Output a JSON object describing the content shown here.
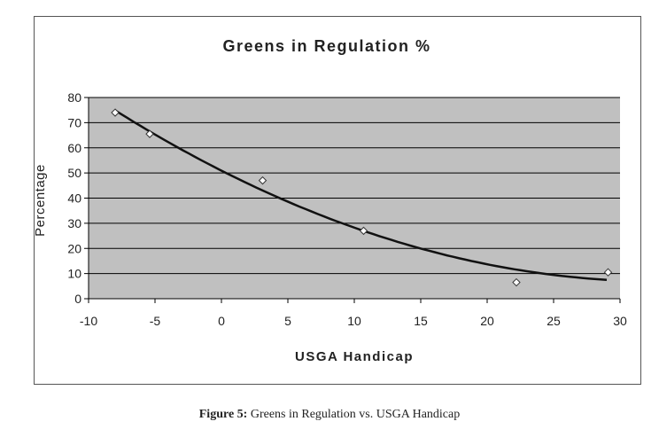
{
  "chart_data": {
    "type": "scatter",
    "title": "Greens in Regulation %",
    "xlabel": "USGA Handicap",
    "ylabel": "Percentage",
    "xlim": [
      -10,
      30
    ],
    "ylim": [
      0,
      80
    ],
    "xticks": [
      -10,
      -5,
      0,
      5,
      10,
      15,
      20,
      25,
      30
    ],
    "yticks": [
      0,
      10,
      20,
      30,
      40,
      50,
      60,
      70,
      80
    ],
    "grid": "horizontal",
    "legend": "none",
    "points": [
      {
        "x": -8,
        "y": 74
      },
      {
        "x": -5.4,
        "y": 65.5
      },
      {
        "x": 3.1,
        "y": 47
      },
      {
        "x": 10.7,
        "y": 27
      },
      {
        "x": 22.2,
        "y": 6.5
      },
      {
        "x": 29.1,
        "y": 10.5
      }
    ],
    "trendline": {
      "type": "polynomial",
      "x_range": [
        -8,
        29
      ]
    },
    "colors": {
      "plot_bg": "#c0c0c0",
      "grid": "#000000",
      "trend": "#111111",
      "marker_fill": "#ffffff"
    }
  },
  "caption": {
    "label": "Figure 5:",
    "text": "Greens in Regulation vs. USGA Handicap"
  }
}
